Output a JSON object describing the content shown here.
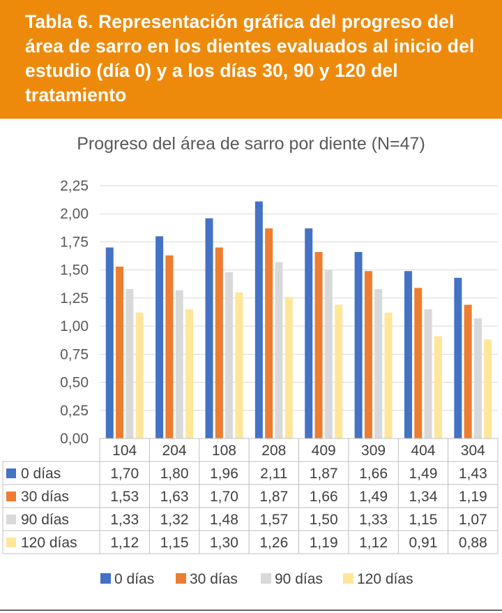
{
  "header": {
    "title": "Tabla 6. Representación gráfica del progreso del área de sarro en los dientes evaluados al inicio del estudio (día 0) y a los días 30, 90 y 120 del tratamiento"
  },
  "chart_data": {
    "type": "bar",
    "title": "Progreso del área de sarro por diente (N=47)",
    "xlabel": "",
    "ylabel": "",
    "ylim": [
      0,
      2.25
    ],
    "yticks": [
      "0,00",
      "0,25",
      "0,50",
      "0,75",
      "1,00",
      "1,25",
      "1,50",
      "1,75",
      "2,00",
      "2,25"
    ],
    "categories": [
      "104",
      "204",
      "108",
      "208",
      "409",
      "309",
      "404",
      "304"
    ],
    "grid": true,
    "legend_position": "bottom",
    "data_table": true,
    "series": [
      {
        "name": "0 días",
        "color": "#4472c4",
        "values": [
          1.7,
          1.8,
          1.96,
          2.11,
          1.87,
          1.66,
          1.49,
          1.43
        ],
        "labels": [
          "1,70",
          "1,80",
          "1,96",
          "2,11",
          "1,87",
          "1,66",
          "1,49",
          "1,43"
        ]
      },
      {
        "name": "30 días",
        "color": "#ed7d31",
        "values": [
          1.53,
          1.63,
          1.7,
          1.87,
          1.66,
          1.49,
          1.34,
          1.19
        ],
        "labels": [
          "1,53",
          "1,63",
          "1,70",
          "1,87",
          "1,66",
          "1,49",
          "1,34",
          "1,19"
        ]
      },
      {
        "name": "90 días",
        "color": "#d9d9d9",
        "values": [
          1.33,
          1.32,
          1.48,
          1.57,
          1.5,
          1.33,
          1.15,
          1.07
        ],
        "labels": [
          "1,33",
          "1,32",
          "1,48",
          "1,57",
          "1,50",
          "1,33",
          "1,15",
          "1,07"
        ]
      },
      {
        "name": "120 días",
        "color": "#ffe699",
        "values": [
          1.12,
          1.15,
          1.3,
          1.26,
          1.19,
          1.12,
          0.91,
          0.88
        ],
        "labels": [
          "1,12",
          "1,15",
          "1,30",
          "1,26",
          "1,19",
          "1,12",
          "0,91",
          "0,88"
        ]
      }
    ]
  }
}
